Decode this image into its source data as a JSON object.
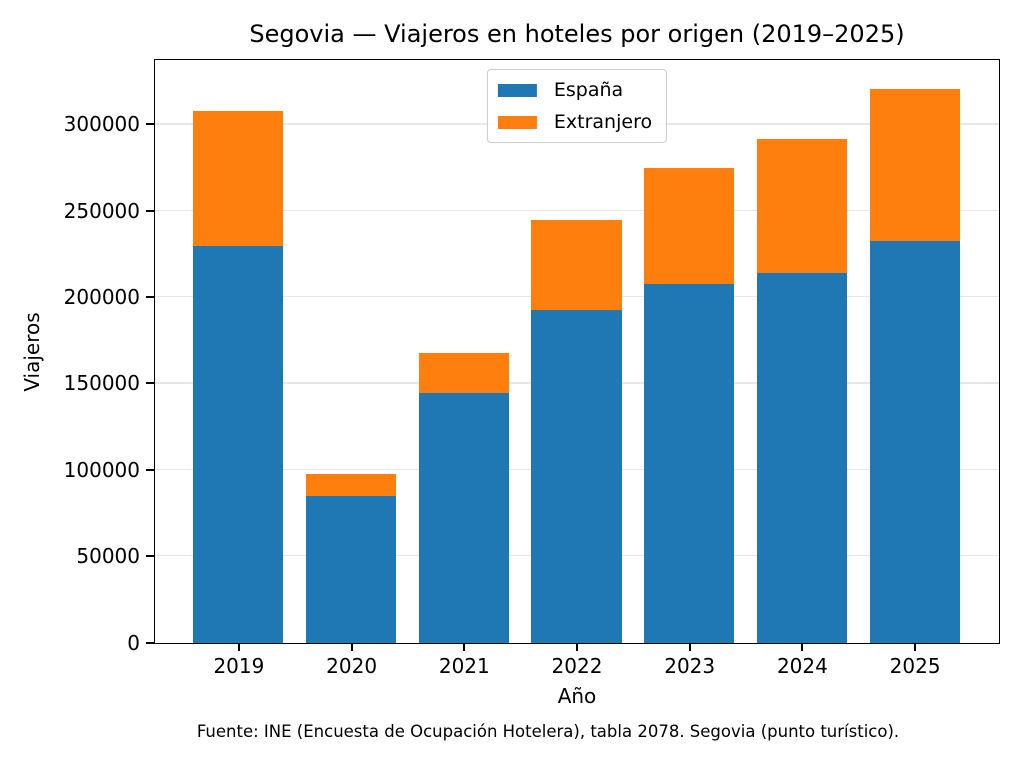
{
  "caption": "Fuente: INE (Encuesta de Ocupación Hotelera), tabla 2078. Segovia (punto turístico).",
  "chart_data": {
    "type": "bar",
    "stacked": true,
    "title": "Segovia — Viajeros en hoteles por origen (2019–2025)",
    "xlabel": "Año",
    "ylabel": "Viajeros",
    "categories": [
      "2019",
      "2020",
      "2021",
      "2022",
      "2023",
      "2024",
      "2025"
    ],
    "series": [
      {
        "name": "España",
        "color": "#1f77b4",
        "values": [
          230000,
          85000,
          145000,
          193000,
          208000,
          214000,
          233000
        ]
      },
      {
        "name": "Extranjero",
        "color": "#ff7f0e",
        "values": [
          78000,
          13000,
          23000,
          52000,
          67000,
          78000,
          88000
        ]
      }
    ],
    "totals": [
      308000,
      98000,
      168000,
      245000,
      275000,
      292000,
      321000
    ],
    "yticks": [
      0,
      50000,
      100000,
      150000,
      200000,
      250000,
      300000
    ],
    "ylim": [
      0,
      337050
    ],
    "xlim": [
      -0.74,
      6.74
    ],
    "bar_width": 0.8,
    "grid": true,
    "grid_color": "#e6e6e6",
    "legend_position": "upper center"
  }
}
